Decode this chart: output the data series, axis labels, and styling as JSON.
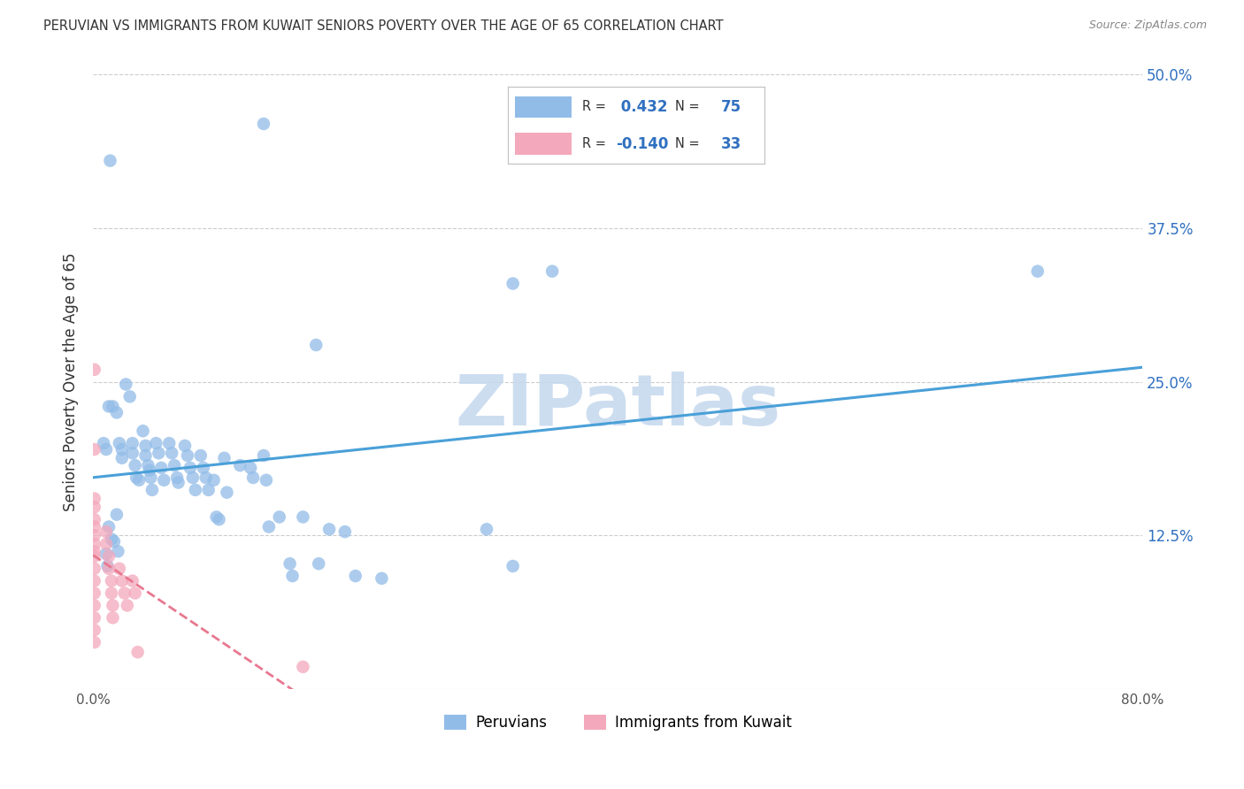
{
  "title": "PERUVIAN VS IMMIGRANTS FROM KUWAIT SENIORS POVERTY OVER THE AGE OF 65 CORRELATION CHART",
  "source": "Source: ZipAtlas.com",
  "ylabel": "Seniors Poverty Over the Age of 65",
  "xlim": [
    0.0,
    0.8
  ],
  "ylim": [
    0.0,
    0.5
  ],
  "xticks": [
    0.0,
    0.1,
    0.2,
    0.3,
    0.4,
    0.5,
    0.6,
    0.7,
    0.8
  ],
  "yticks": [
    0.0,
    0.125,
    0.25,
    0.375,
    0.5
  ],
  "ytick_labels": [
    "",
    "12.5%",
    "25.0%",
    "37.5%",
    "50.0%"
  ],
  "peruvian_color": "#92bce8",
  "kuwait_color": "#f4a8bc",
  "peruvian_line_color": "#4aa0d8",
  "kuwait_line_color": "#e87890",
  "peruvian_R": 0.432,
  "kuwait_R": -0.14,
  "watermark": "ZIPatlas",
  "watermark_color": "#c5d8ee",
  "background_color": "#ffffff",
  "grid_color": "#cccccc",
  "legend_r1_label": "R = ",
  "legend_r1_val": " 0.432",
  "legend_n1_label": "N = ",
  "legend_n1_val": "75",
  "legend_r2_label": "R = ",
  "legend_r2_val": "-0.140",
  "legend_n2_label": "N = ",
  "legend_n2_val": "33",
  "blue_label_color": "#3070c0",
  "peruvian_points": [
    [
      0.013,
      0.43
    ],
    [
      0.008,
      0.2
    ],
    [
      0.01,
      0.195
    ],
    [
      0.012,
      0.23
    ],
    [
      0.015,
      0.23
    ],
    [
      0.018,
      0.225
    ],
    [
      0.02,
      0.2
    ],
    [
      0.022,
      0.195
    ],
    [
      0.022,
      0.188
    ],
    [
      0.025,
      0.248
    ],
    [
      0.028,
      0.238
    ],
    [
      0.03,
      0.2
    ],
    [
      0.03,
      0.192
    ],
    [
      0.032,
      0.182
    ],
    [
      0.033,
      0.172
    ],
    [
      0.035,
      0.17
    ],
    [
      0.038,
      0.21
    ],
    [
      0.04,
      0.198
    ],
    [
      0.04,
      0.19
    ],
    [
      0.042,
      0.182
    ],
    [
      0.043,
      0.178
    ],
    [
      0.044,
      0.172
    ],
    [
      0.045,
      0.162
    ],
    [
      0.048,
      0.2
    ],
    [
      0.05,
      0.192
    ],
    [
      0.052,
      0.18
    ],
    [
      0.054,
      0.17
    ],
    [
      0.058,
      0.2
    ],
    [
      0.06,
      0.192
    ],
    [
      0.062,
      0.182
    ],
    [
      0.064,
      0.172
    ],
    [
      0.065,
      0.168
    ],
    [
      0.07,
      0.198
    ],
    [
      0.072,
      0.19
    ],
    [
      0.074,
      0.18
    ],
    [
      0.076,
      0.172
    ],
    [
      0.078,
      0.162
    ],
    [
      0.082,
      0.19
    ],
    [
      0.084,
      0.18
    ],
    [
      0.086,
      0.172
    ],
    [
      0.088,
      0.162
    ],
    [
      0.092,
      0.17
    ],
    [
      0.094,
      0.14
    ],
    [
      0.096,
      0.138
    ],
    [
      0.1,
      0.188
    ],
    [
      0.102,
      0.16
    ],
    [
      0.112,
      0.182
    ],
    [
      0.12,
      0.18
    ],
    [
      0.122,
      0.172
    ],
    [
      0.13,
      0.19
    ],
    [
      0.132,
      0.17
    ],
    [
      0.134,
      0.132
    ],
    [
      0.142,
      0.14
    ],
    [
      0.15,
      0.102
    ],
    [
      0.152,
      0.092
    ],
    [
      0.16,
      0.14
    ],
    [
      0.172,
      0.102
    ],
    [
      0.18,
      0.13
    ],
    [
      0.192,
      0.128
    ],
    [
      0.2,
      0.092
    ],
    [
      0.22,
      0.09
    ],
    [
      0.3,
      0.13
    ],
    [
      0.32,
      0.1
    ],
    [
      0.018,
      0.142
    ],
    [
      0.012,
      0.132
    ],
    [
      0.014,
      0.122
    ],
    [
      0.016,
      0.12
    ],
    [
      0.01,
      0.11
    ],
    [
      0.011,
      0.1
    ],
    [
      0.019,
      0.112
    ],
    [
      0.17,
      0.28
    ],
    [
      0.32,
      0.33
    ],
    [
      0.72,
      0.34
    ],
    [
      0.35,
      0.34
    ],
    [
      0.13,
      0.46
    ]
  ],
  "kuwait_points": [
    [
      0.001,
      0.26
    ],
    [
      0.001,
      0.195
    ],
    [
      0.001,
      0.155
    ],
    [
      0.001,
      0.148
    ],
    [
      0.001,
      0.138
    ],
    [
      0.001,
      0.132
    ],
    [
      0.001,
      0.125
    ],
    [
      0.001,
      0.118
    ],
    [
      0.001,
      0.112
    ],
    [
      0.001,
      0.108
    ],
    [
      0.001,
      0.098
    ],
    [
      0.001,
      0.088
    ],
    [
      0.001,
      0.078
    ],
    [
      0.001,
      0.068
    ],
    [
      0.001,
      0.058
    ],
    [
      0.001,
      0.048
    ],
    [
      0.001,
      0.038
    ],
    [
      0.01,
      0.128
    ],
    [
      0.01,
      0.118
    ],
    [
      0.012,
      0.108
    ],
    [
      0.012,
      0.098
    ],
    [
      0.014,
      0.088
    ],
    [
      0.014,
      0.078
    ],
    [
      0.015,
      0.068
    ],
    [
      0.015,
      0.058
    ],
    [
      0.02,
      0.098
    ],
    [
      0.022,
      0.088
    ],
    [
      0.024,
      0.078
    ],
    [
      0.026,
      0.068
    ],
    [
      0.03,
      0.088
    ],
    [
      0.032,
      0.078
    ],
    [
      0.034,
      0.03
    ],
    [
      0.16,
      0.018
    ]
  ]
}
